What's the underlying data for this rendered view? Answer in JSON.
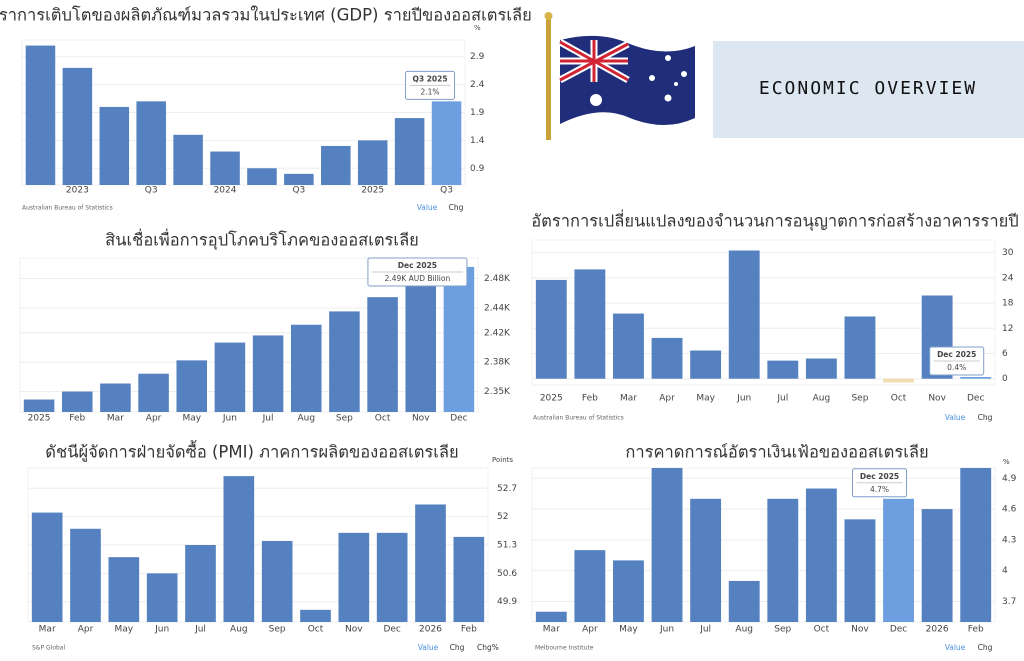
{
  "header": {
    "title": "ECONOMIC OVERVIEW"
  },
  "chart_data": [
    {
      "type": "bar",
      "title": "อัตราการเติบโตของผลิตภัณฑ์มวลรวมในประเทศ (GDP) รายปีของออสเตรเลีย",
      "unit": "%",
      "categories": [
        null,
        "2023",
        null,
        "Q3",
        null,
        "2024",
        null,
        "Q3",
        null,
        "2025",
        null,
        "Q3"
      ],
      "values": [
        3.1,
        2.7,
        2.0,
        2.1,
        1.5,
        1.2,
        0.9,
        0.8,
        1.3,
        1.4,
        1.8,
        2.1
      ],
      "color": "#5581c1",
      "highlight_color": "#6d9ee0",
      "ylim": [
        0.6,
        3.2
      ],
      "yticks": [
        0.9,
        1.4,
        1.9,
        2.4,
        2.9
      ],
      "grid": true,
      "tooltip": {
        "index": 11,
        "title": "Q3 2025",
        "text": "2.1%"
      },
      "source": "Australian Bureau of Statistics",
      "buttons": [
        "Value",
        "Chg"
      ]
    },
    {
      "type": "bar",
      "title": "สินเชื่อเพื่อการอุปโภคบริโภคของออสเตรเลีย",
      "categories": [
        "2025",
        "Feb",
        "Mar",
        "Apr",
        "May",
        "Jun",
        "Jul",
        "Aug",
        "Sep",
        "Oct",
        "Nov",
        "Dec"
      ],
      "values": [
        2341,
        2350,
        2359,
        2370,
        2385,
        2405,
        2413,
        2425,
        2440,
        2456,
        2472,
        2490
      ],
      "color": "#5581c1",
      "highlight_color": "#6d9ee0",
      "ylim": [
        2327,
        2500
      ],
      "yticks": [
        {
          "value": 2350,
          "label": "2.35K"
        },
        {
          "value": 2383,
          "label": "2.38K"
        },
        {
          "value": 2416,
          "label": "2.42K"
        },
        {
          "value": 2444,
          "label": "2.44K"
        },
        {
          "value": 2477,
          "label": "2.48K"
        }
      ],
      "grid": true,
      "tooltip": {
        "index": 11,
        "title": "Dec 2025",
        "text": "2.49K AUD Billion"
      }
    },
    {
      "type": "bar",
      "title": "อัตราการเปลี่ยนแปลงของจำนวนการอนุญาตการก่อสร้างอาคารรายปี",
      "categories": [
        "2025",
        "Feb",
        "Mar",
        "Apr",
        "May",
        "Jun",
        "Jul",
        "Aug",
        "Sep",
        "Oct",
        "Nov",
        "Dec"
      ],
      "values": [
        23.5,
        26,
        15.5,
        9.7,
        6.7,
        30.5,
        4.3,
        4.8,
        14.8,
        -0.9,
        19.8,
        0.4
      ],
      "color": "#5581c1",
      "highlight_color": "#6d9ee0",
      "negative_color": "#f1ddb0",
      "ylim": [
        -1.5,
        33
      ],
      "yticks": [
        0,
        6,
        12,
        18,
        24,
        30
      ],
      "grid": true,
      "tooltip": {
        "index": 11,
        "title": "Dec 2025",
        "text": "0.4%"
      },
      "source": "Australian Bureau of Statistics",
      "buttons": [
        "Value",
        "Chg"
      ]
    },
    {
      "type": "bar",
      "title": "ดัชนีผู้จัดการฝ่ายจัดซื้อ (PMI) ภาคการผลิตของออสเตรเลีย",
      "unit": "Points",
      "categories": [
        "Mar",
        "Apr",
        "May",
        "Jun",
        "Jul",
        "Aug",
        "Sep",
        "Oct",
        "Nov",
        "Dec",
        "2026",
        "Feb"
      ],
      "values": [
        52.1,
        51.7,
        51.0,
        50.6,
        51.3,
        53.0,
        51.4,
        49.7,
        51.6,
        51.6,
        52.3,
        51.5
      ],
      "color": "#5581c1",
      "ylim": [
        49.4,
        53.2
      ],
      "yticks": [
        49.9,
        50.6,
        51.3,
        52.0,
        52.7
      ],
      "grid": true,
      "source": "S&P Global",
      "buttons": [
        "Value",
        "Chg",
        "Chg%"
      ]
    },
    {
      "type": "bar",
      "title": "การคาดการณ์อัตราเงินเฟ้อของออสเตรเลีย",
      "unit": "%",
      "categories": [
        "Mar",
        "Apr",
        "May",
        "Jun",
        "Jul",
        "Aug",
        "Sep",
        "Oct",
        "Nov",
        "Dec",
        "2026",
        "Feb"
      ],
      "values": [
        3.6,
        4.2,
        4.1,
        5.0,
        4.7,
        3.9,
        4.7,
        4.8,
        4.5,
        4.7,
        4.6,
        5.0
      ],
      "color": "#5581c1",
      "highlight_color": "#6d9ee0",
      "ylim": [
        3.5,
        5.0
      ],
      "yticks": [
        3.7,
        4.0,
        4.3,
        4.6,
        4.9
      ],
      "grid": true,
      "tooltip": {
        "index": 9,
        "title": "Dec 2025",
        "text": "4.7%"
      },
      "source": "Melbourne Institute",
      "buttons": [
        "Value",
        "Chg"
      ]
    }
  ]
}
